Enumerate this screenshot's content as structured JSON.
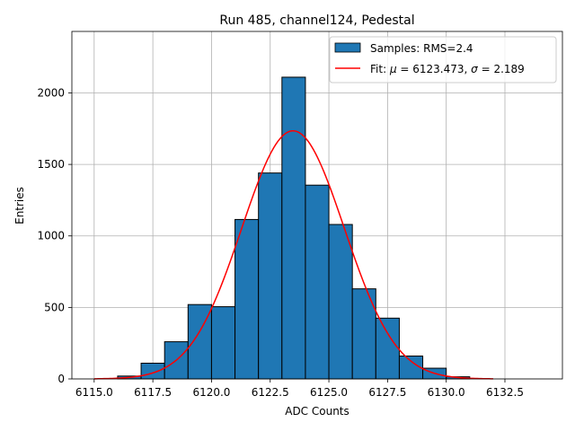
{
  "chart_data": {
    "type": "bar",
    "title": "Run 485, channel124, Pedestal",
    "xlabel": "ADC Counts",
    "ylabel": "Entries",
    "xlim": [
      6114.05,
      6134.95
    ],
    "ylim": [
      0,
      2430
    ],
    "grid": true,
    "legend_position": "top-right",
    "x_ticks": [
      6115.0,
      6117.5,
      6120.0,
      6122.5,
      6125.0,
      6127.5,
      6130.0,
      6132.5
    ],
    "x_tick_labels": [
      "6115.0",
      "6117.5",
      "6120.0",
      "6122.5",
      "6125.0",
      "6127.5",
      "6130.0",
      "6132.5"
    ],
    "y_ticks": [
      0,
      500,
      1000,
      1500,
      2000
    ],
    "y_tick_labels": [
      "0",
      "500",
      "1000",
      "1500",
      "2000"
    ],
    "histogram": {
      "name": "Samples: RMS=2.4",
      "color": "#1f77b4",
      "edge_color": "#000000",
      "bin_edges": [
        6116,
        6117,
        6118,
        6119,
        6120,
        6121,
        6122,
        6123,
        6124,
        6125,
        6126,
        6127,
        6128,
        6129,
        6130,
        6131
      ],
      "counts": [
        20,
        110,
        260,
        520,
        505,
        1115,
        1440,
        2110,
        1355,
        1080,
        630,
        425,
        160,
        75,
        15
      ]
    },
    "fit": {
      "name_prefix": "Fit: ",
      "mu_symbol": "μ",
      "mu_text": " = 6123.473, ",
      "sigma_symbol": "σ",
      "sigma_text": " = 2.189",
      "mu": 6123.473,
      "sigma": 2.189,
      "amplitude": 1735,
      "x_range": [
        6115,
        6132
      ],
      "color": "#ff0000"
    }
  }
}
